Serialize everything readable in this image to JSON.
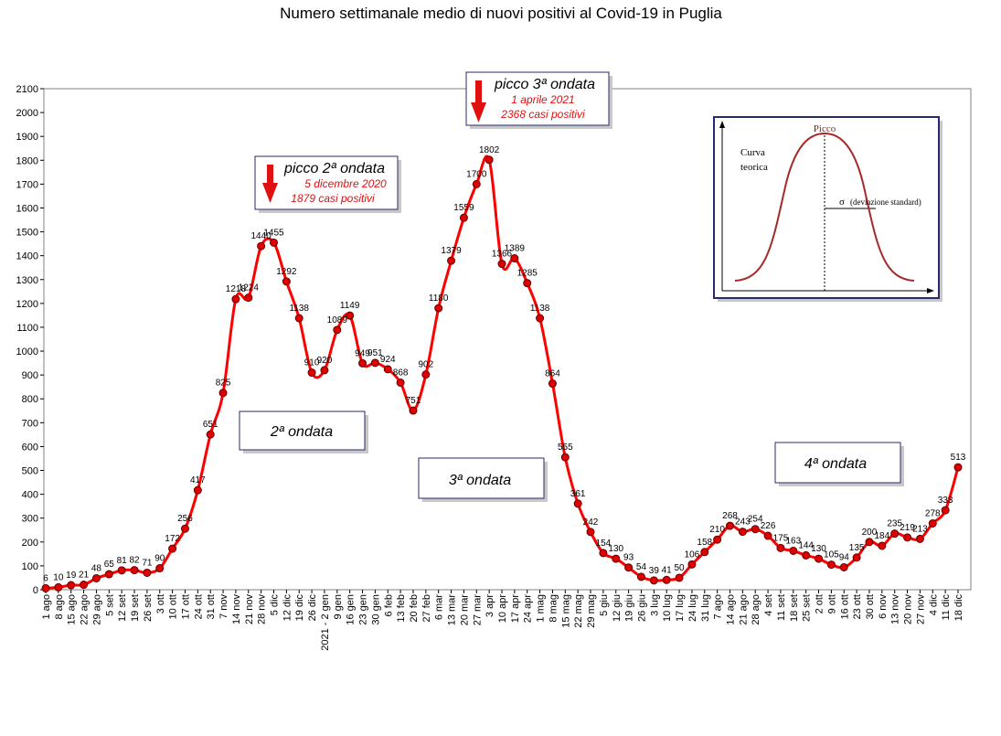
{
  "chart_data": {
    "type": "line",
    "title": "Numero settimanale medio di nuovi positivi al Covid-19 in Puglia",
    "xlabel": "",
    "ylabel": "",
    "ylim": [
      0,
      2100
    ],
    "ytick_step": 100,
    "grid": false,
    "categories": [
      "1 ago",
      "8 ago",
      "15 ago",
      "22 ago",
      "29 ago",
      "5 set",
      "12 set",
      "19 set",
      "26 set",
      "3 ott",
      "10 ott",
      "17 ott",
      "24 ott",
      "31 ott",
      "7 nov",
      "14 nov",
      "21 nov",
      "28 nov",
      "5 dic",
      "12 dic",
      "19 dic",
      "26 dic",
      "2021 - 2 gen",
      "9 gen",
      "16 gen",
      "23 gen",
      "30 gen",
      "6 feb",
      "13 feb",
      "20 feb",
      "27 feb",
      "6 mar",
      "13 mar",
      "20 mar",
      "27 mar",
      "3 apr",
      "10 apr",
      "17 apr",
      "24 apr",
      "1 mag",
      "8 mag",
      "15 mag",
      "22 mag",
      "29 mag",
      "5 giu",
      "12 giu",
      "19 giu",
      "26 giu",
      "3 lug",
      "10 lug",
      "17 lug",
      "24 lug",
      "31 lug",
      "7 ago",
      "14 ago",
      "21 ago",
      "28 ago",
      "4 set",
      "11 set",
      "18 set",
      "25 set",
      "2 ott",
      "9 ott",
      "16 ott",
      "23 ott",
      "30 ott",
      "6 nov",
      "13 nov",
      "20 nov",
      "27 nov",
      "4 dic",
      "11 dic",
      "18 dic"
    ],
    "series": [
      {
        "name": "",
        "color": "#ff0000",
        "values": [
          6,
          10,
          19,
          21,
          48,
          65,
          81,
          82,
          71,
          90,
          172,
          256,
          417,
          651,
          825,
          1218,
          1224,
          1440,
          1455,
          1292,
          1138,
          910,
          920,
          1089,
          1149,
          949,
          951,
          924,
          868,
          751,
          902,
          1180,
          1379,
          1559,
          1700,
          1802,
          1366,
          1389,
          1285,
          1138,
          864,
          555,
          361,
          242,
          154,
          130,
          93,
          54,
          39,
          41,
          50,
          106,
          158,
          210,
          268,
          243,
          254,
          226,
          175,
          163,
          144,
          130,
          105,
          94,
          135,
          200,
          184,
          235,
          219,
          213,
          278,
          333,
          513
        ],
        "labels": [
          "6",
          "10",
          "19",
          "21",
          "48",
          "65",
          "81",
          "82",
          "71",
          "90",
          "172",
          "256",
          "417",
          "651",
          "825",
          "1218",
          "1224",
          "1440",
          "1455",
          "1292",
          "1138",
          "910",
          "920",
          "1089",
          "1149",
          "949",
          "951",
          "924",
          "868",
          "751",
          "902",
          "1180",
          "1379",
          "1559",
          "1700",
          "1802",
          "1366",
          "1389",
          "1285",
          "1138",
          "864",
          "555",
          "361",
          "242",
          "154",
          "130",
          "93",
          "54",
          "39",
          "41",
          "50",
          "106",
          "158",
          "210",
          "268",
          "243",
          "254",
          "226",
          "175",
          "163",
          "144",
          "130",
          "105",
          "94",
          "135",
          "200",
          "184",
          "235",
          "219",
          "213",
          "278",
          "333",
          "513"
        ]
      }
    ],
    "annotations": {
      "peak2": {
        "title": "picco 2ª ondata",
        "date": "5 dicembre 2020",
        "cases": "1879 casi positivi"
      },
      "peak3": {
        "title": "picco 3ª ondata",
        "date": "1 aprile 2021",
        "cases": "2368 casi positivi"
      },
      "wave2": "2ª ondata",
      "wave3": "3ª ondata",
      "wave4": "4ª ondata"
    },
    "inset": {
      "peak_label": "Picco",
      "curve_label_line1": "Curva",
      "curve_label_line2": "teorica",
      "sigma_label": "σ",
      "sigma_text": "(deviazione standard)"
    }
  }
}
